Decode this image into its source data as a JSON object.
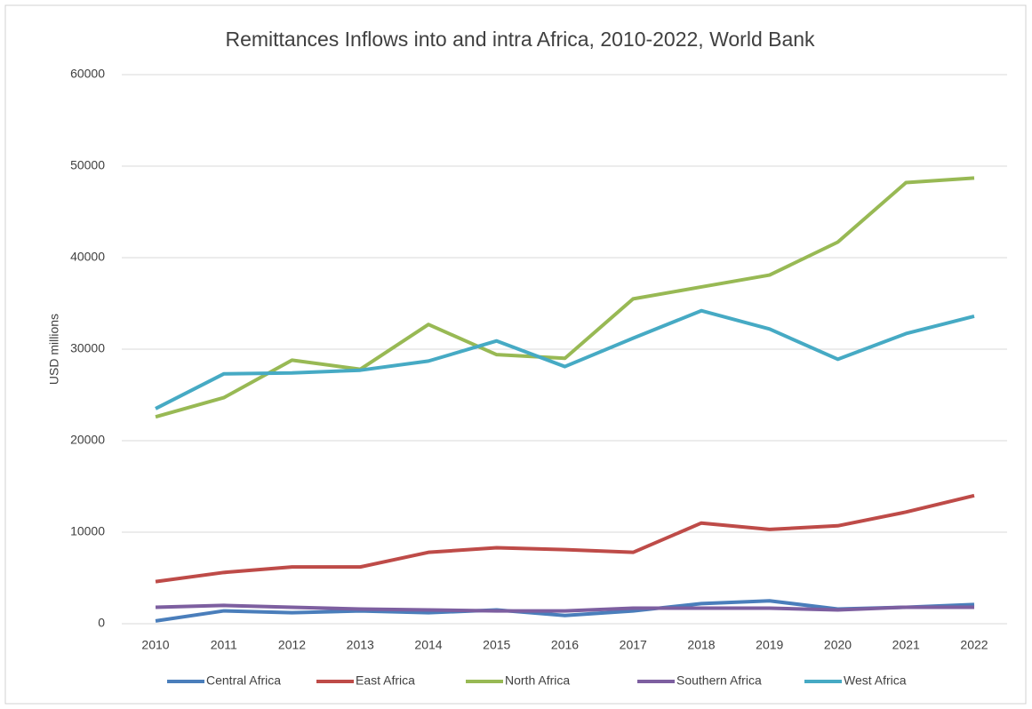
{
  "chart_data": {
    "type": "line",
    "title": "Remittances Inflows into and intra Africa, 2010-2022, World Bank",
    "y_label": "USD millions",
    "categories": [
      "2010",
      "2011",
      "2012",
      "2013",
      "2014",
      "2015",
      "2016",
      "2017",
      "2018",
      "2019",
      "2020",
      "2021",
      "2022"
    ],
    "ylim": [
      0,
      60000
    ],
    "yticks": [
      0,
      10000,
      20000,
      30000,
      40000,
      50000,
      60000
    ],
    "grid": true,
    "legend": "bottom",
    "series": [
      {
        "name": "Central Africa",
        "color": "#4a7ebb",
        "values": [
          300,
          1400,
          1200,
          1400,
          1200,
          1500,
          900,
          1400,
          2200,
          2500,
          1600,
          1800,
          2100
        ]
      },
      {
        "name": "East Africa",
        "color": "#be4b48",
        "values": [
          4600,
          5600,
          6200,
          6200,
          7800,
          8300,
          8100,
          7800,
          11000,
          10300,
          10700,
          12200,
          14000
        ]
      },
      {
        "name": "North Africa",
        "color": "#98b954",
        "values": [
          22600,
          24700,
          28800,
          27800,
          32700,
          29400,
          29000,
          35500,
          36800,
          38100,
          41700,
          48200,
          48700
        ]
      },
      {
        "name": "Southern Africa",
        "color": "#7d5fa0",
        "values": [
          1800,
          2000,
          1800,
          1600,
          1500,
          1400,
          1400,
          1700,
          1700,
          1700,
          1500,
          1800,
          1800
        ]
      },
      {
        "name": "West Africa",
        "color": "#46aac4",
        "values": [
          23500,
          27300,
          27400,
          27700,
          28700,
          30900,
          28100,
          31200,
          34200,
          32200,
          28900,
          31700,
          33600
        ]
      }
    ]
  }
}
